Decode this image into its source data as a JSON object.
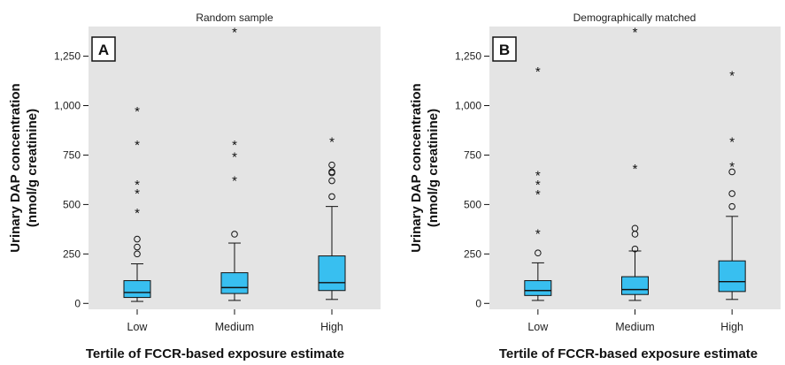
{
  "colors": {
    "plot_background": "#e4e4e4",
    "box_fill": "#38bff0",
    "line": "#111111"
  },
  "chart_data": [
    {
      "type": "box",
      "panel_label": "A",
      "title": "Random sample",
      "ylabel": "Urinary DAP concentration (nmol/g creatinine)",
      "ylabel_lines": [
        "Urinary DAP concentration",
        "(nmol/g creatinine)"
      ],
      "xlabel": "Tertile of FCCR-based exposure estimate",
      "ylim": [
        -30,
        1400
      ],
      "yticks": [
        0,
        250,
        500,
        750,
        1000,
        1250
      ],
      "ytick_labels": [
        "0",
        "250",
        "500",
        "750",
        "1,000",
        "1,250"
      ],
      "categories": [
        "Low",
        "Medium",
        "High"
      ],
      "boxes": [
        {
          "category": "Low",
          "whisker_low": 10,
          "q1": 30,
          "median": 55,
          "q3": 115,
          "whisker_high": 200,
          "mild_outliers": [
            250,
            285,
            325
          ],
          "extreme_outliers": [
            465,
            565,
            610,
            810,
            980
          ]
        },
        {
          "category": "Medium",
          "whisker_low": 15,
          "q1": 50,
          "median": 80,
          "q3": 155,
          "whisker_high": 305,
          "mild_outliers": [
            350
          ],
          "extreme_outliers": [
            630,
            750,
            810,
            1380
          ]
        },
        {
          "category": "High",
          "whisker_low": 20,
          "q1": 65,
          "median": 105,
          "q3": 240,
          "whisker_high": 490,
          "mild_outliers": [
            540,
            620,
            660,
            665,
            700
          ],
          "extreme_outliers": [
            825
          ]
        }
      ]
    },
    {
      "type": "box",
      "panel_label": "B",
      "title": "Demographically matched",
      "ylabel": "Urinary DAP concentration (nmol/g creatinine)",
      "ylabel_lines": [
        "Urinary DAP concentration",
        "(nmol/g creatinine)"
      ],
      "xlabel": "Tertile of FCCR-based exposure estimate",
      "ylim": [
        -30,
        1400
      ],
      "yticks": [
        0,
        250,
        500,
        750,
        1000,
        1250
      ],
      "ytick_labels": [
        "0",
        "250",
        "500",
        "750",
        "1,000",
        "1,250"
      ],
      "categories": [
        "Low",
        "Medium",
        "High"
      ],
      "boxes": [
        {
          "category": "Low",
          "whisker_low": 15,
          "q1": 40,
          "median": 65,
          "q3": 115,
          "whisker_high": 205,
          "mild_outliers": [
            255
          ],
          "extreme_outliers": [
            360,
            560,
            610,
            655,
            1180
          ]
        },
        {
          "category": "Medium",
          "whisker_low": 15,
          "q1": 45,
          "median": 70,
          "q3": 135,
          "whisker_high": 265,
          "mild_outliers": [
            275,
            350,
            380
          ],
          "extreme_outliers": [
            690,
            1380
          ]
        },
        {
          "category": "High",
          "whisker_low": 20,
          "q1": 60,
          "median": 110,
          "q3": 215,
          "whisker_high": 440,
          "mild_outliers": [
            490,
            555,
            665
          ],
          "extreme_outliers": [
            700,
            825,
            1160
          ]
        }
      ]
    }
  ]
}
